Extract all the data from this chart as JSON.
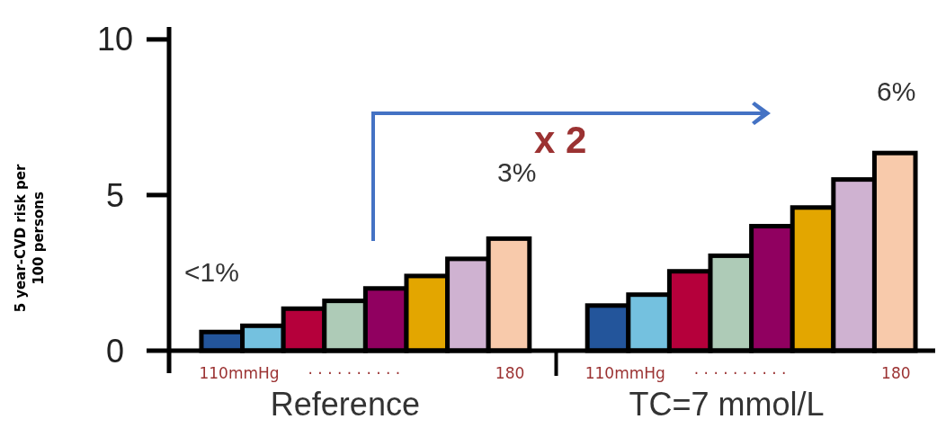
{
  "chart_data": {
    "type": "bar",
    "ylabel": "5 year-CVD risk per 100 persons",
    "categories": [
      "Reference",
      "TC=7 mmol/L"
    ],
    "series": [
      {
        "color": "#23559b",
        "values": [
          0.6,
          1.45
        ]
      },
      {
        "color": "#74c1df",
        "values": [
          0.8,
          1.8
        ]
      },
      {
        "color": "#b5003b",
        "values": [
          1.35,
          2.55
        ]
      },
      {
        "color": "#aecbb7",
        "values": [
          1.6,
          3.05
        ]
      },
      {
        "color": "#900060",
        "values": [
          2.0,
          4.0
        ]
      },
      {
        "color": "#e3a600",
        "values": [
          2.4,
          4.6
        ]
      },
      {
        "color": "#cfb2d1",
        "values": [
          2.95,
          5.5
        ]
      },
      {
        "color": "#f8caab",
        "values": [
          3.6,
          6.35
        ]
      }
    ],
    "ylim": [
      0,
      10.4
    ],
    "yticks": [
      0,
      5,
      10
    ],
    "annotations": [
      "<1%",
      "3%",
      "6%",
      "x 2",
      "110mmHg",
      "· · · · · · · · · ·",
      "180",
      "110mmHg",
      "· · · · · · · · · ·",
      "180"
    ]
  }
}
